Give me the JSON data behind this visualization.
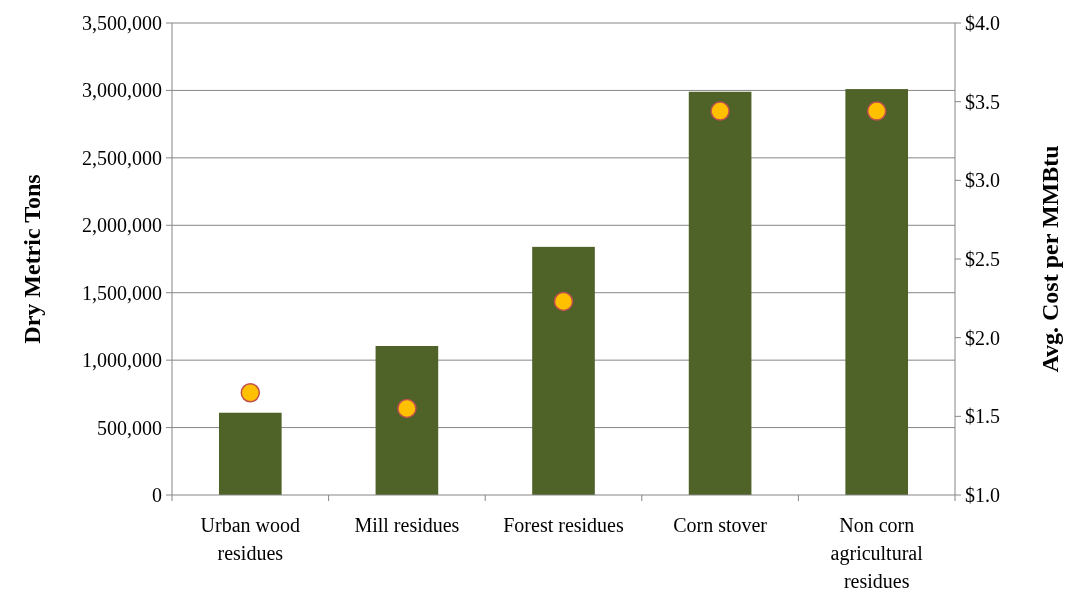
{
  "chart_data": {
    "type": "bar",
    "categories": [
      "Urban wood residues",
      "Mill residues",
      "Forest residues",
      "Corn stover",
      "Non corn agricultural residues"
    ],
    "ylabel": "Dry Metric Tons",
    "y2label": "Avg. Cost per MMBtu",
    "series": [
      {
        "color": "#4f6228",
        "values": [
          610000,
          1105000,
          1840000,
          2990000,
          3010000
        ]
      },
      {
        "type": "scatter",
        "axis": "y2",
        "color": "#ffc000",
        "values": [
          1.65,
          1.55,
          2.23,
          3.44,
          3.44
        ]
      }
    ],
    "ylim": [
      0,
      3500000
    ],
    "yticks": [
      {
        "value": 0,
        "label": "0"
      },
      {
        "value": 500000,
        "label": "500,000"
      },
      {
        "value": 1000000,
        "label": "1,000,000"
      },
      {
        "value": 1500000,
        "label": "1,500,000"
      },
      {
        "value": 2000000,
        "label": "2,000,000"
      },
      {
        "value": 2500000,
        "label": "2,500,000"
      },
      {
        "value": 3000000,
        "label": "3,000,000"
      },
      {
        "value": 3500000,
        "label": "3,500,000"
      }
    ],
    "y2lim": [
      1,
      4
    ],
    "y2ticks": [
      {
        "value": 1,
        "label": "$1.0"
      },
      {
        "value": 1.5,
        "label": "$1.5"
      },
      {
        "value": 2,
        "label": "$2.0"
      },
      {
        "value": 2.5,
        "label": "$2.5"
      },
      {
        "value": 3,
        "label": "$3.0"
      },
      {
        "value": 3.5,
        "label": "$3.5"
      },
      {
        "value": 4,
        "label": "$4.0"
      }
    ],
    "grid": "y",
    "marker": "circle"
  }
}
